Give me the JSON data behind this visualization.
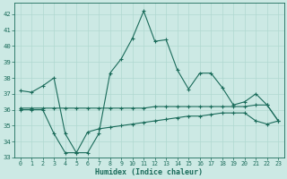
{
  "xlabel": "Humidex (Indice chaleur)",
  "background_color": "#cce9e4",
  "grid_color": "#b0d8d0",
  "line_color": "#1a6b5a",
  "xlim": [
    -0.5,
    23.5
  ],
  "ylim": [
    33,
    42.7
  ],
  "yticks": [
    33,
    34,
    35,
    36,
    37,
    38,
    39,
    40,
    41,
    42
  ],
  "xticks": [
    0,
    1,
    2,
    3,
    4,
    5,
    6,
    7,
    8,
    9,
    10,
    11,
    12,
    13,
    14,
    15,
    16,
    17,
    18,
    19,
    20,
    21,
    22,
    23
  ],
  "series1_x": [
    0,
    1,
    2,
    3,
    4,
    5,
    6,
    7,
    8,
    9,
    10,
    11,
    12,
    13,
    14,
    15,
    16,
    17,
    18,
    19,
    20,
    21,
    22,
    23
  ],
  "series1_y": [
    37.2,
    37.1,
    37.5,
    38.0,
    34.5,
    33.3,
    33.3,
    34.5,
    38.3,
    39.2,
    40.5,
    42.2,
    40.3,
    40.4,
    38.5,
    37.3,
    38.3,
    38.3,
    37.4,
    36.3,
    36.5,
    37.0,
    36.3,
    35.3
  ],
  "series2_x": [
    0,
    1,
    2,
    3,
    4,
    5,
    6,
    7,
    8,
    9,
    10,
    11,
    12,
    13,
    14,
    15,
    16,
    17,
    18,
    19,
    20,
    21,
    22,
    23
  ],
  "series2_y": [
    36.1,
    36.1,
    36.1,
    36.1,
    36.1,
    36.1,
    36.1,
    36.1,
    36.1,
    36.1,
    36.1,
    36.1,
    36.2,
    36.2,
    36.2,
    36.2,
    36.2,
    36.2,
    36.2,
    36.2,
    36.2,
    36.3,
    36.3,
    35.3
  ],
  "series3_x": [
    0,
    1,
    2,
    3,
    4,
    5,
    6,
    7,
    8,
    9,
    10,
    11,
    12,
    13,
    14,
    15,
    16,
    17,
    18,
    19,
    20,
    21,
    22,
    23
  ],
  "series3_y": [
    36.0,
    36.0,
    36.0,
    34.5,
    33.3,
    33.3,
    34.6,
    34.8,
    34.9,
    35.0,
    35.1,
    35.2,
    35.3,
    35.4,
    35.5,
    35.6,
    35.6,
    35.7,
    35.8,
    35.8,
    35.8,
    35.3,
    35.1,
    35.3
  ]
}
